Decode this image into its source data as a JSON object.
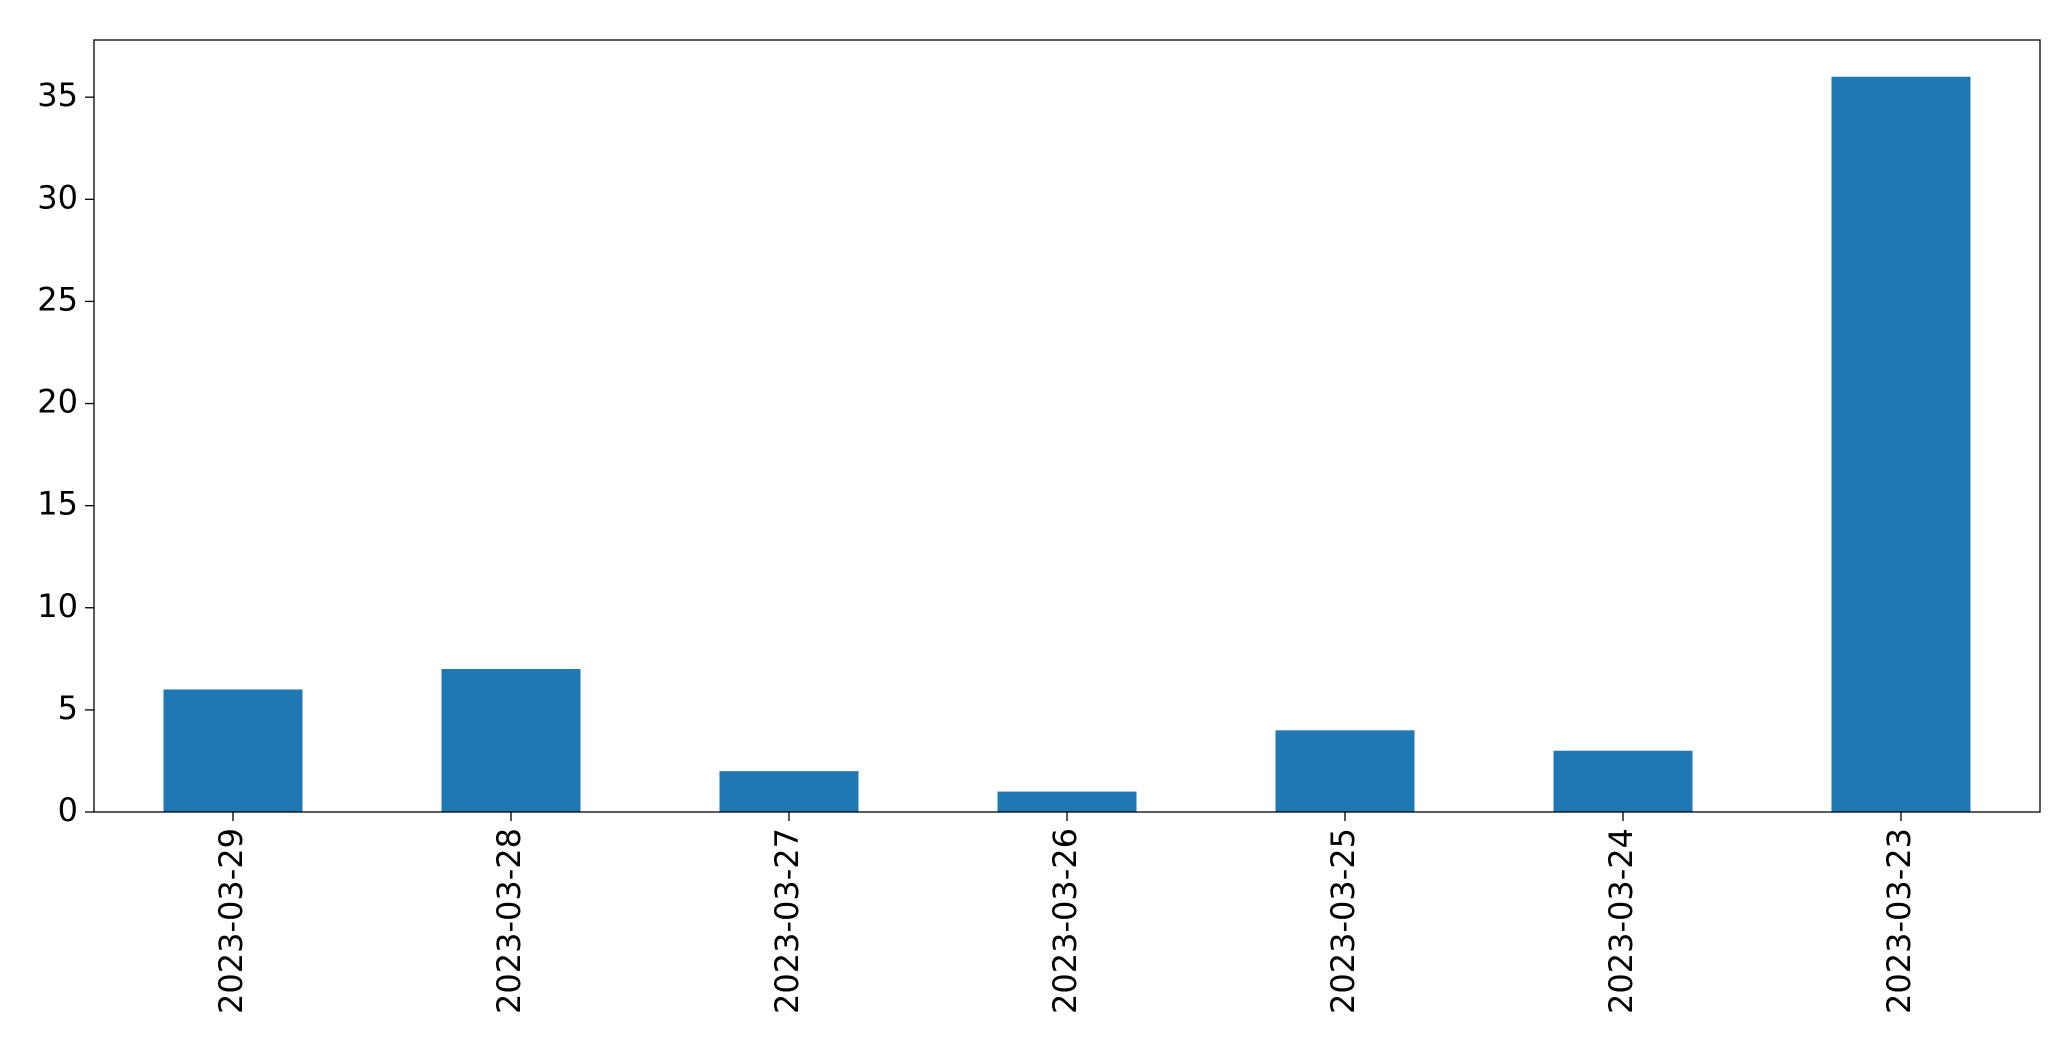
{
  "chart_data": {
    "type": "bar",
    "categories": [
      "2023-03-29",
      "2023-03-28",
      "2023-03-27",
      "2023-03-26",
      "2023-03-25",
      "2023-03-24",
      "2023-03-23"
    ],
    "values": [
      6,
      7,
      2,
      1,
      4,
      3,
      36
    ],
    "color": "#1f77b4",
    "ylim": [
      0,
      37.8
    ],
    "yticks": [
      0,
      5,
      10,
      15,
      20,
      25,
      30,
      35
    ]
  }
}
